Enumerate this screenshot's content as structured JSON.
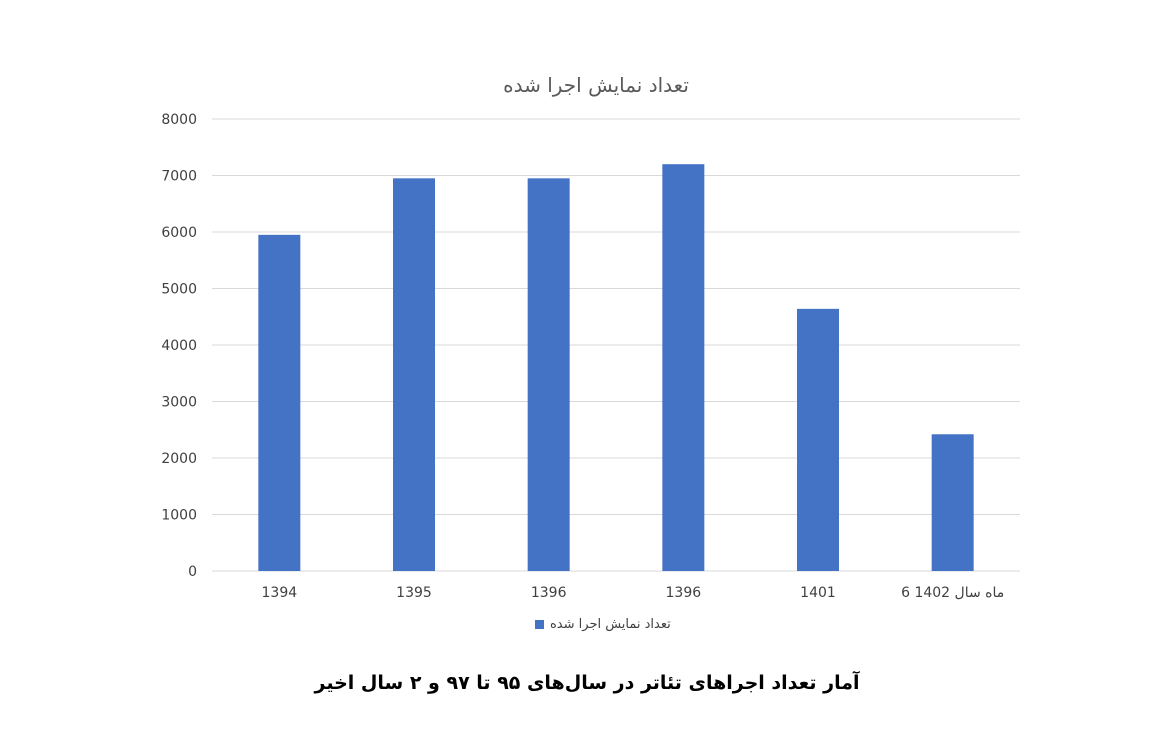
{
  "chart_data": {
    "type": "bar",
    "title": "تعداد نمایش اجرا شده",
    "categories": [
      "1394",
      "1395",
      "1396",
      "1396",
      "1401",
      "6 ماه سال 1402"
    ],
    "series": [
      {
        "name": "تعداد نمایش اجرا شده",
        "values": [
          5950,
          6950,
          6950,
          7200,
          4640,
          2420
        ]
      }
    ],
    "ylim": [
      0,
      8000
    ],
    "yticks": [
      0,
      1000,
      2000,
      3000,
      4000,
      5000,
      6000,
      7000,
      8000
    ],
    "grid": true,
    "legend_position": "bottom",
    "bar_color": "#4472C4",
    "grid_color": "#D9D9D9"
  },
  "caption": "آمار تعداد اجراهای تئاتر در سال‌های ۹۵ تا ۹۷ و ۲ سال اخیر"
}
